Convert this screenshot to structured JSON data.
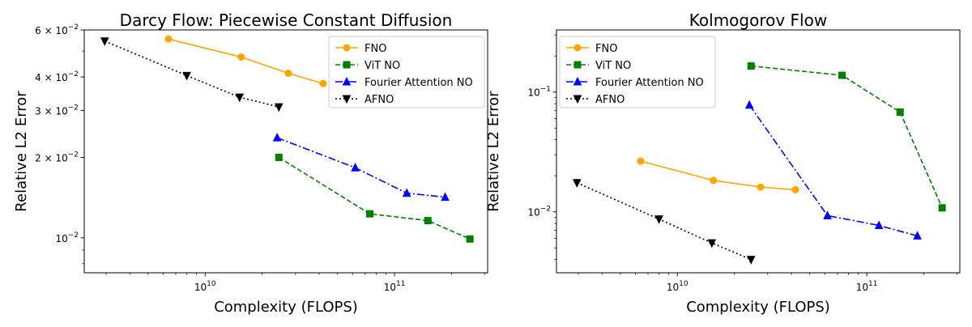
{
  "chart_data": [
    {
      "type": "line",
      "title": "Darcy Flow: Piecewise Constant Diffusion",
      "xlabel": "Complexity (FLOPS)",
      "ylabel": "Relative L2 Error",
      "xscale": "log",
      "yscale": "log",
      "xlim": [
        2300000000.0,
        310000000000.0
      ],
      "ylim": [
        0.0074,
        0.06
      ],
      "xticks": [
        {
          "value": 10000000000.0,
          "base": "10",
          "exp": "10"
        },
        {
          "value": 100000000000.0,
          "base": "10",
          "exp": "11"
        }
      ],
      "yticks": [
        {
          "value": 0.06,
          "base": "6 × 10",
          "exp": "−2"
        },
        {
          "value": 0.04,
          "base": "4 × 10",
          "exp": "−2"
        },
        {
          "value": 0.03,
          "base": "3 × 10",
          "exp": "−2"
        },
        {
          "value": 0.02,
          "base": "2 × 10",
          "exp": "−2"
        },
        {
          "value": 0.01,
          "base": "10",
          "exp": "−2"
        }
      ],
      "legend_position": "top-right",
      "series": [
        {
          "name": "FNO",
          "color": "#ffa500",
          "dash": "solid",
          "marker": "circle",
          "x": [
            6400000000.0,
            15500000000.0,
            27500000000.0,
            42000000000.0
          ],
          "y": [
            0.0555,
            0.0475,
            0.0413,
            0.0378
          ]
        },
        {
          "name": "ViT NO",
          "color": "#008000",
          "dash": "dashed",
          "marker": "square",
          "x": [
            24500000000.0,
            74000000000.0,
            150000000000.0,
            250000000000.0
          ],
          "y": [
            0.02,
            0.0123,
            0.0116,
            0.0099
          ]
        },
        {
          "name": "Fourier Attention NO",
          "color": "#0000ff",
          "dash": "dashdot",
          "marker": "triangle-up",
          "x": [
            24000000000.0,
            62000000000.0,
            116000000000.0,
            185000000000.0
          ],
          "y": [
            0.0237,
            0.0183,
            0.0147,
            0.0142
          ]
        },
        {
          "name": "AFNO",
          "color": "#000000",
          "dash": "dotted",
          "marker": "triangle-down",
          "x": [
            2950000000.0,
            8000000000.0,
            15200000000.0,
            24500000000.0
          ],
          "y": [
            0.0545,
            0.0405,
            0.0336,
            0.0309
          ]
        }
      ]
    },
    {
      "type": "line",
      "title": "Kolmogorov Flow",
      "xlabel": "Complexity (FLOPS)",
      "ylabel": "Relative L2 Error",
      "xscale": "log",
      "yscale": "log",
      "xlim": [
        2300000000.0,
        310000000000.0
      ],
      "ylim": [
        0.0031,
        0.33
      ],
      "xticks": [
        {
          "value": 10000000000.0,
          "base": "10",
          "exp": "10"
        },
        {
          "value": 100000000000.0,
          "base": "10",
          "exp": "11"
        }
      ],
      "yticks": [
        {
          "value": 0.1,
          "base": "10",
          "exp": "−1"
        },
        {
          "value": 0.01,
          "base": "10",
          "exp": "−2"
        }
      ],
      "legend_position": "top-left",
      "series": [
        {
          "name": "FNO",
          "color": "#ffa500",
          "dash": "solid",
          "marker": "circle",
          "x": [
            6400000000.0,
            15500000000.0,
            27500000000.0,
            42000000000.0
          ],
          "y": [
            0.0265,
            0.0183,
            0.0161,
            0.0153
          ]
        },
        {
          "name": "ViT NO",
          "color": "#008000",
          "dash": "dashed",
          "marker": "square",
          "x": [
            24500000000.0,
            74000000000.0,
            150000000000.0,
            250000000000.0
          ],
          "y": [
            0.165,
            0.138,
            0.068,
            0.0108
          ]
        },
        {
          "name": "Fourier Attention NO",
          "color": "#0000ff",
          "dash": "dashdot",
          "marker": "triangle-up",
          "x": [
            24000000000.0,
            62000000000.0,
            116000000000.0,
            185000000000.0
          ],
          "y": [
            0.078,
            0.0093,
            0.0077,
            0.0063
          ]
        },
        {
          "name": "AFNO",
          "color": "#000000",
          "dash": "dotted",
          "marker": "triangle-down",
          "x": [
            2950000000.0,
            8000000000.0,
            15200000000.0,
            24500000000.0
          ],
          "y": [
            0.0175,
            0.0087,
            0.0055,
            0.004
          ]
        }
      ]
    }
  ]
}
